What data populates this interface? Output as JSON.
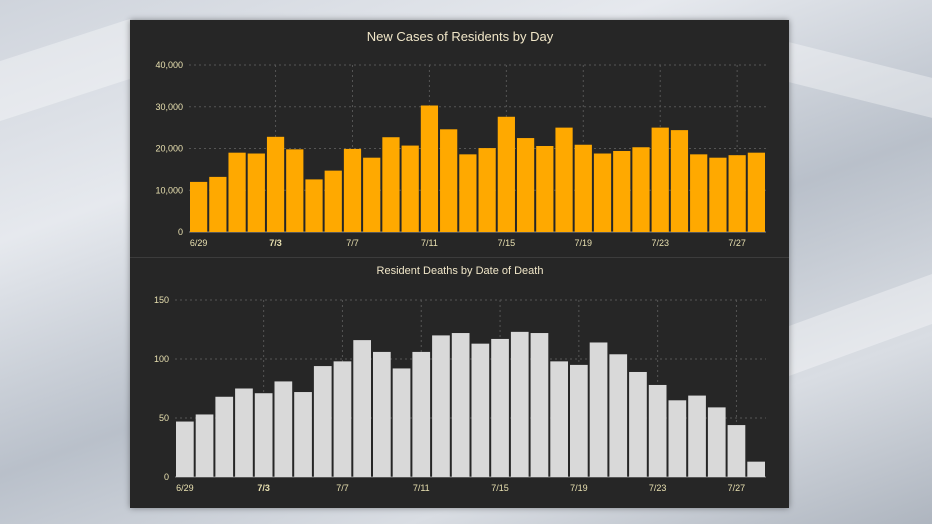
{
  "colors": {
    "cases_bar": "#ffa900",
    "deaths_bar": "#d9d9d9",
    "panel_bg": "#262626",
    "title_text": "#f0e6c8",
    "tick_text": "#e8e0b0",
    "grid": "#555555"
  },
  "chart_data": [
    {
      "type": "bar",
      "title": "New Cases of Residents by Day",
      "xlabel": "",
      "ylabel": "",
      "ylim": [
        0,
        40000
      ],
      "yticks": [
        "0",
        "10,000",
        "20,000",
        "30,000",
        "40,000"
      ],
      "categories": [
        "6/29",
        "6/30",
        "7/1",
        "7/2",
        "7/3",
        "7/4",
        "7/5",
        "7/6",
        "7/7",
        "7/8",
        "7/9",
        "7/10",
        "7/11",
        "7/12",
        "7/13",
        "7/14",
        "7/15",
        "7/16",
        "7/17",
        "7/18",
        "7/19",
        "7/20",
        "7/21",
        "7/22",
        "7/23",
        "7/24",
        "7/25",
        "7/26",
        "7/27",
        "7/28"
      ],
      "values": [
        12000,
        13200,
        19000,
        18800,
        22800,
        19800,
        12600,
        14700,
        19900,
        17800,
        22700,
        20700,
        30300,
        24600,
        18600,
        20100,
        27600,
        22500,
        20600,
        25000,
        20900,
        18800,
        19400,
        20300,
        25000,
        24400,
        18600,
        17800,
        18400,
        19000
      ],
      "xtick_labels": [
        {
          "label": "6/29",
          "bold": false
        },
        {
          "label": "7/3",
          "bold": true
        },
        {
          "label": "7/7",
          "bold": false
        },
        {
          "label": "7/11",
          "bold": false
        },
        {
          "label": "7/15",
          "bold": false
        },
        {
          "label": "7/19",
          "bold": false
        },
        {
          "label": "7/23",
          "bold": false
        },
        {
          "label": "7/27",
          "bold": false
        }
      ],
      "grid": true
    },
    {
      "type": "bar",
      "title": "Resident Deaths by Date of Death",
      "xlabel": "",
      "ylabel": "",
      "ylim": [
        0,
        150
      ],
      "yticks": [
        "0",
        "50",
        "100",
        "150"
      ],
      "categories": [
        "6/29",
        "6/30",
        "7/1",
        "7/2",
        "7/3",
        "7/4",
        "7/5",
        "7/6",
        "7/7",
        "7/8",
        "7/9",
        "7/10",
        "7/11",
        "7/12",
        "7/13",
        "7/14",
        "7/15",
        "7/16",
        "7/17",
        "7/18",
        "7/19",
        "7/20",
        "7/21",
        "7/22",
        "7/23",
        "7/24",
        "7/25",
        "7/26",
        "7/27",
        "7/28"
      ],
      "values": [
        47,
        53,
        68,
        75,
        71,
        81,
        72,
        94,
        98,
        116,
        106,
        92,
        106,
        120,
        122,
        113,
        117,
        123,
        122,
        98,
        95,
        114,
        104,
        89,
        78,
        65,
        69,
        59,
        44,
        13
      ],
      "xtick_labels": [
        {
          "label": "6/29",
          "bold": false
        },
        {
          "label": "7/3",
          "bold": true
        },
        {
          "label": "7/7",
          "bold": false
        },
        {
          "label": "7/11",
          "bold": false
        },
        {
          "label": "7/15",
          "bold": false
        },
        {
          "label": "7/19",
          "bold": false
        },
        {
          "label": "7/23",
          "bold": false
        },
        {
          "label": "7/27",
          "bold": false
        }
      ],
      "grid": true
    }
  ]
}
